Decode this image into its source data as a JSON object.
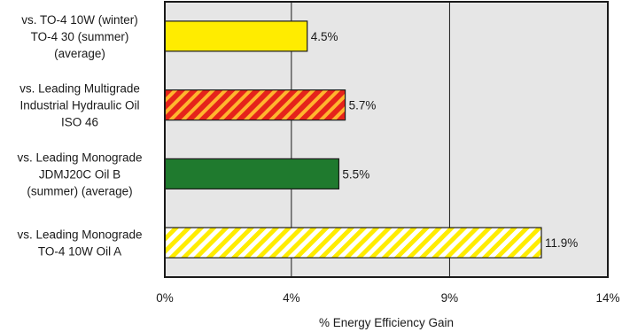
{
  "chart_data": {
    "type": "bar",
    "orientation": "horizontal",
    "categories": [
      [
        "vs. TO-4 10W (winter)",
        "TO-4 30 (summer)",
        "(average)"
      ],
      [
        "vs. Leading Multigrade",
        "Industrial Hydraulic Oil",
        "ISO 46"
      ],
      [
        "vs. Leading Monograde",
        "JDMJ20C Oil B",
        "(summer) (average)"
      ],
      [
        "vs. Leading Monograde",
        "TO-4 10W Oil A"
      ]
    ],
    "values": [
      4.5,
      5.7,
      5.5,
      11.9
    ],
    "data_labels": [
      "4.5%",
      "5.7%",
      "5.5%",
      "11.9%"
    ],
    "bar_styles": [
      {
        "fill": "#ffec00",
        "pattern": "solid"
      },
      {
        "fill": "#e5231b",
        "stripe": "#ffb52e",
        "pattern": "diagonal-stripes"
      },
      {
        "fill": "#1f7a2e",
        "pattern": "solid"
      },
      {
        "fill": "#ffffff",
        "stripe": "#ffec00",
        "pattern": "diagonal-stripes"
      }
    ],
    "xticks": [
      0,
      4,
      9,
      14
    ],
    "xtick_labels": [
      "0%",
      "4%",
      "9%",
      "14%"
    ],
    "xlim": [
      0,
      14
    ],
    "xlabel": "% Energy Efficiency Gain",
    "plot_background": "#e6e6e6",
    "grid": "vertical",
    "legend": "none"
  }
}
